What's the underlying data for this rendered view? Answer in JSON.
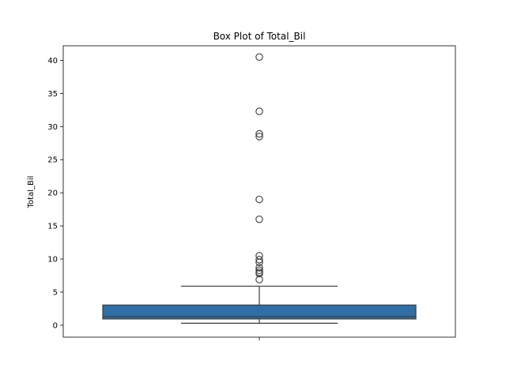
{
  "chart_data": {
    "type": "box",
    "title": "Box Plot of Total_Bil",
    "xlabel": "",
    "ylabel": "Total_Bil",
    "ylim": [
      -1.8,
      42.2
    ],
    "yticks": [
      0,
      5,
      10,
      15,
      20,
      25,
      30,
      35,
      40
    ],
    "grid": false,
    "legend": "none",
    "box_color": "#2f6fa5",
    "line_color": "#3b3b3b",
    "series": [
      {
        "whisker_low": 0.3,
        "q1": 0.95,
        "median": 1.3,
        "q3": 3.05,
        "whisker_high": 5.9,
        "outliers": [
          40.5,
          32.3,
          28.9,
          28.5,
          19.0,
          16.0,
          10.5,
          9.9,
          9.5,
          8.7,
          8.3,
          8.0,
          7.8,
          6.9
        ]
      }
    ]
  }
}
